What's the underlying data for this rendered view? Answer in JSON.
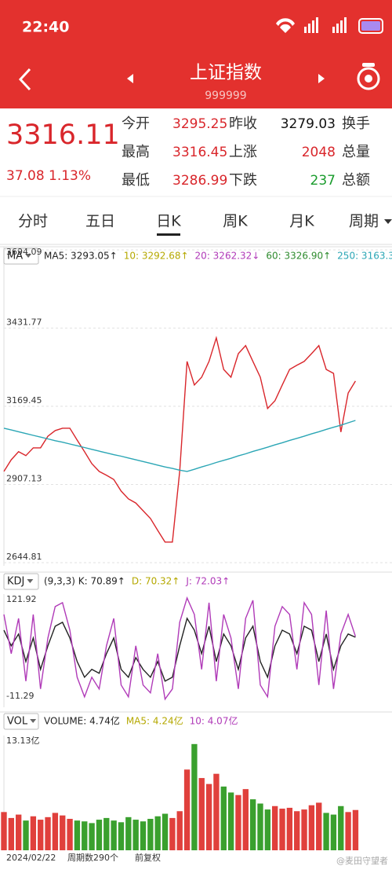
{
  "status_bar": {
    "time": "22:40"
  },
  "header": {
    "title": "上证指数",
    "code": "999999"
  },
  "quote": {
    "price": "3316.11",
    "change": "37.08",
    "change_pct": "1.13%",
    "open_label": "今开",
    "open": "3295.25",
    "high_label": "最高",
    "high": "3316.45",
    "low_label": "最低",
    "low": "3286.99",
    "prev_label": "昨收",
    "prev": "3279.03",
    "up_label": "上涨",
    "up": "2048",
    "down_label": "下跌",
    "down": "237",
    "turnover_label": "换手",
    "volume_label": "总量",
    "amount_label": "总额"
  },
  "tabs": [
    "分时",
    "五日",
    "日K",
    "周K",
    "月K",
    "周期"
  ],
  "chart_data": [
    {
      "type": "line",
      "label": "MA",
      "legend": [
        {
          "text": "MA5: 3293.05↑",
          "color": "#222222"
        },
        {
          "text": "10: 3292.68↑",
          "color": "#b5a800"
        },
        {
          "text": "20: 3262.32↓",
          "color": "#b03ab8"
        },
        {
          "text": "60: 3326.90↑",
          "color": "#2e8b2e"
        },
        {
          "text": "250: 3163.3",
          "color": "#2ba6b5"
        }
      ],
      "x": [
        0,
        6,
        12,
        18,
        24,
        30,
        36,
        42,
        48,
        54,
        60,
        66,
        72,
        78,
        84,
        90,
        96,
        102,
        108,
        114,
        120,
        126,
        132,
        138,
        144,
        150,
        156,
        162,
        168,
        174,
        180,
        186,
        192,
        198,
        204,
        210,
        216,
        222,
        228,
        234,
        240,
        246,
        252,
        258,
        264,
        270,
        276,
        282,
        288
      ],
      "xlim": [
        0,
        289
      ],
      "ylim": [
        2644.81,
        3694.09
      ],
      "yticks": [
        2644.81,
        2907.13,
        3169.45,
        3431.77,
        3694.09
      ],
      "grid": true,
      "series": [
        {
          "color": "#d9262b",
          "values": [
            2951,
            2990,
            3017,
            3004,
            3030,
            3030,
            3069,
            3088,
            3096,
            3096,
            3056,
            3017,
            2977,
            2951,
            2938,
            2924,
            2885,
            2859,
            2845,
            2819,
            2793,
            2753,
            2714,
            2714,
            2951,
            3320,
            3241,
            3267,
            3320,
            3399,
            3293,
            3267,
            3346,
            3373,
            3320,
            3267,
            3162,
            3188,
            3241,
            3293,
            3307,
            3320,
            3346,
            3373,
            3293,
            3280,
            3083,
            3214,
            3254
          ]
        },
        {
          "color": "#2ba6b5",
          "values": [
            3096,
            3090,
            3084,
            3078,
            3072,
            3066,
            3060,
            3054,
            3049,
            3043,
            3037,
            3031,
            3025,
            3019,
            3013,
            3007,
            3002,
            2996,
            2990,
            2984,
            2978,
            2972,
            2966,
            2961,
            2955,
            2951,
            2958,
            2966,
            2973,
            2981,
            2988,
            2995,
            3003,
            3010,
            3018,
            3025,
            3032,
            3040,
            3047,
            3055,
            3062,
            3069,
            3077,
            3084,
            3092,
            3099,
            3106,
            3114,
            3122
          ]
        }
      ]
    },
    {
      "type": "line",
      "label": "KDJ",
      "legend": [
        {
          "text": "(9,3,3) K: 70.89↑",
          "color": "#222222"
        },
        {
          "text": "D: 70.32↑",
          "color": "#b5a800"
        },
        {
          "text": "J: 72.03↑",
          "color": "#b03ab8"
        }
      ],
      "x": [
        0,
        6,
        12,
        18,
        24,
        30,
        36,
        42,
        48,
        54,
        60,
        66,
        72,
        78,
        84,
        90,
        96,
        102,
        108,
        114,
        120,
        126,
        132,
        138,
        144,
        150,
        156,
        162,
        168,
        174,
        180,
        186,
        192,
        198,
        204,
        210,
        216,
        222,
        228,
        234,
        240,
        246,
        252,
        258,
        264,
        270,
        276,
        282,
        288
      ],
      "xlim": [
        0,
        289
      ],
      "ylim": [
        -11.29,
        121.92
      ],
      "yticks": [
        -11.29,
        121.92
      ],
      "grid": false,
      "series": [
        {
          "color": "#222222",
          "values": [
            80,
            60,
            75,
            40,
            70,
            30,
            60,
            85,
            90,
            70,
            40,
            20,
            30,
            25,
            50,
            70,
            30,
            20,
            45,
            30,
            20,
            40,
            15,
            20,
            60,
            95,
            80,
            50,
            85,
            40,
            75,
            60,
            30,
            70,
            85,
            40,
            20,
            60,
            80,
            75,
            50,
            85,
            80,
            40,
            75,
            30,
            60,
            75,
            70.89
          ]
        },
        {
          "color": "#b03ab8",
          "values": [
            100,
            50,
            95,
            15,
            100,
            5,
            70,
            110,
            115,
            80,
            20,
            -5,
            20,
            5,
            60,
            95,
            10,
            -5,
            60,
            10,
            0,
            50,
            -8,
            5,
            90,
            121,
            100,
            30,
            115,
            15,
            100,
            70,
            5,
            95,
            118,
            10,
            -5,
            85,
            110,
            100,
            30,
            115,
            100,
            10,
            105,
            5,
            75,
            100,
            72.03
          ]
        }
      ]
    },
    {
      "type": "bar",
      "label": "VOL",
      "legend": [
        {
          "text": "VOLUME: 4.74亿",
          "color": "#222222"
        },
        {
          "text": "MA5: 4.24亿",
          "color": "#b5a800"
        },
        {
          "text": "10: 4.07亿",
          "color": "#b03ab8"
        }
      ],
      "x": [
        0,
        6,
        12,
        18,
        24,
        30,
        36,
        42,
        48,
        54,
        60,
        66,
        72,
        78,
        84,
        90,
        96,
        102,
        108,
        114,
        120,
        126,
        132,
        138,
        144,
        150,
        156,
        162,
        168,
        174,
        180,
        186,
        192,
        198,
        204,
        210,
        216,
        222,
        228,
        234,
        240,
        246,
        252,
        258,
        264,
        270,
        276,
        282,
        288
      ],
      "xlim": [
        0,
        289
      ],
      "ylim": [
        0,
        13.13
      ],
      "yticks": [
        {
          "value": 13.13,
          "label": "13.13亿"
        }
      ],
      "grid": false,
      "series": [
        {
          "color": "#e0403c",
          "down_color": "#3aa02e",
          "values": [
            4.5,
            3.8,
            4.2,
            3.5,
            4.0,
            3.6,
            3.9,
            4.4,
            4.1,
            3.7,
            3.5,
            3.4,
            3.2,
            3.6,
            3.8,
            3.5,
            3.3,
            3.9,
            3.6,
            3.4,
            3.7,
            4.0,
            4.3,
            3.8,
            4.6,
            9.5,
            12.5,
            8.5,
            7.8,
            9.0,
            7.5,
            6.8,
            6.5,
            7.2,
            6.0,
            5.5,
            4.8,
            5.2,
            4.9,
            5.0,
            4.6,
            4.8,
            5.3,
            5.6,
            4.4,
            4.2,
            5.2,
            4.5,
            4.74
          ]
        }
      ]
    }
  ],
  "footer": {
    "date": "2024/02/22",
    "periods": "周期数290个",
    "adjust": "前复权",
    "watermark": "@麦田守望者"
  }
}
